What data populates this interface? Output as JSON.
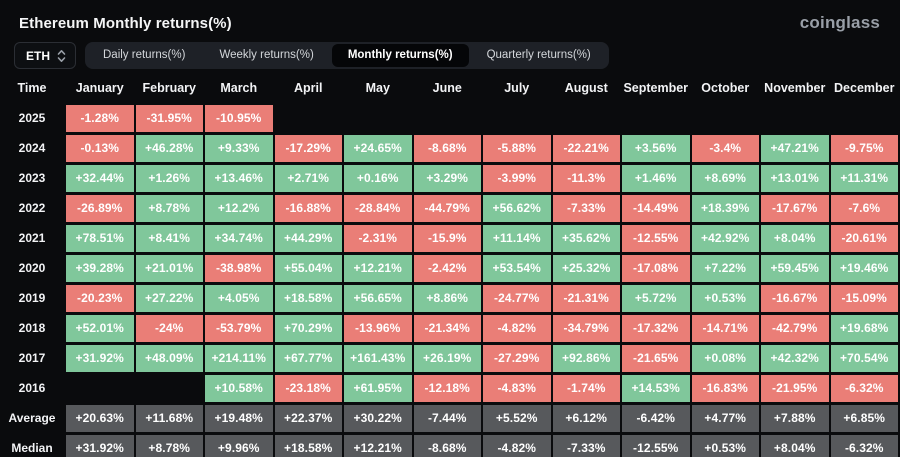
{
  "header": {
    "title": "Ethereum Monthly returns(%)",
    "logo": "coinglass"
  },
  "controls": {
    "symbol_select": {
      "value": "ETH",
      "icon": "select-arrows-icon"
    },
    "tabs": [
      {
        "label": "Daily returns(%)",
        "active": false
      },
      {
        "label": "Weekly returns(%)",
        "active": false
      },
      {
        "label": "Monthly returns(%)",
        "active": true
      },
      {
        "label": "Quarterly returns(%)",
        "active": false
      }
    ]
  },
  "theme": {
    "bg": "#0a0b0d",
    "positive": "#80c79b",
    "negative": "#ea7e77",
    "neutral": "#57595c"
  },
  "chart_data": {
    "type": "heatmap",
    "title": "Ethereum Monthly returns(%)",
    "legend": "green = positive monthly return, red = negative, gray = statistic rows",
    "columns": [
      "Time",
      "January",
      "February",
      "March",
      "April",
      "May",
      "June",
      "July",
      "August",
      "September",
      "October",
      "November",
      "December"
    ],
    "rows": [
      {
        "label": "2025",
        "kind": "year",
        "values": [
          "-1.28%",
          "-31.95%",
          "-10.95%",
          "",
          "",
          "",
          "",
          "",
          "",
          "",
          "",
          ""
        ]
      },
      {
        "label": "2024",
        "kind": "year",
        "values": [
          "-0.13%",
          "+46.28%",
          "+9.33%",
          "-17.29%",
          "+24.65%",
          "-8.68%",
          "-5.88%",
          "-22.21%",
          "+3.56%",
          "-3.4%",
          "+47.21%",
          "-9.75%"
        ]
      },
      {
        "label": "2023",
        "kind": "year",
        "values": [
          "+32.44%",
          "+1.26%",
          "+13.46%",
          "+2.71%",
          "+0.16%",
          "+3.29%",
          "-3.99%",
          "-11.3%",
          "+1.46%",
          "+8.69%",
          "+13.01%",
          "+11.31%"
        ]
      },
      {
        "label": "2022",
        "kind": "year",
        "values": [
          "-26.89%",
          "+8.78%",
          "+12.2%",
          "-16.88%",
          "-28.84%",
          "-44.79%",
          "+56.62%",
          "-7.33%",
          "-14.49%",
          "+18.39%",
          "-17.67%",
          "-7.6%"
        ]
      },
      {
        "label": "2021",
        "kind": "year",
        "values": [
          "+78.51%",
          "+8.41%",
          "+34.74%",
          "+44.29%",
          "-2.31%",
          "-15.9%",
          "+11.14%",
          "+35.62%",
          "-12.55%",
          "+42.92%",
          "+8.04%",
          "-20.61%"
        ]
      },
      {
        "label": "2020",
        "kind": "year",
        "values": [
          "+39.28%",
          "+21.01%",
          "-38.98%",
          "+55.04%",
          "+12.21%",
          "-2.42%",
          "+53.54%",
          "+25.32%",
          "-17.08%",
          "+7.22%",
          "+59.45%",
          "+19.46%"
        ]
      },
      {
        "label": "2019",
        "kind": "year",
        "values": [
          "-20.23%",
          "+27.22%",
          "+4.05%",
          "+18.58%",
          "+56.65%",
          "+8.86%",
          "-24.77%",
          "-21.31%",
          "+5.72%",
          "+0.53%",
          "-16.67%",
          "-15.09%"
        ]
      },
      {
        "label": "2018",
        "kind": "year",
        "values": [
          "+52.01%",
          "-24%",
          "-53.79%",
          "+70.29%",
          "-13.96%",
          "-21.34%",
          "-4.82%",
          "-34.79%",
          "-17.32%",
          "-14.71%",
          "-42.79%",
          "+19.68%"
        ]
      },
      {
        "label": "2017",
        "kind": "year",
        "values": [
          "+31.92%",
          "+48.09%",
          "+214.11%",
          "+67.77%",
          "+161.43%",
          "+26.19%",
          "-27.29%",
          "+92.86%",
          "-21.65%",
          "+0.08%",
          "+42.32%",
          "+70.54%"
        ]
      },
      {
        "label": "2016",
        "kind": "year",
        "values": [
          "",
          "",
          "+10.58%",
          "-23.18%",
          "+61.95%",
          "-12.18%",
          "-4.83%",
          "-1.74%",
          "+14.53%",
          "-16.83%",
          "-21.95%",
          "-6.32%"
        ]
      },
      {
        "label": "Average",
        "kind": "stat",
        "values": [
          "+20.63%",
          "+11.68%",
          "+19.48%",
          "+22.37%",
          "+30.22%",
          "-7.44%",
          "+5.52%",
          "+6.12%",
          "-6.42%",
          "+4.77%",
          "+7.88%",
          "+6.85%"
        ]
      },
      {
        "label": "Median",
        "kind": "stat",
        "values": [
          "+31.92%",
          "+8.78%",
          "+9.96%",
          "+18.58%",
          "+12.21%",
          "-8.68%",
          "-4.82%",
          "-7.33%",
          "-12.55%",
          "+0.53%",
          "+8.04%",
          "-6.32%"
        ]
      }
    ]
  }
}
